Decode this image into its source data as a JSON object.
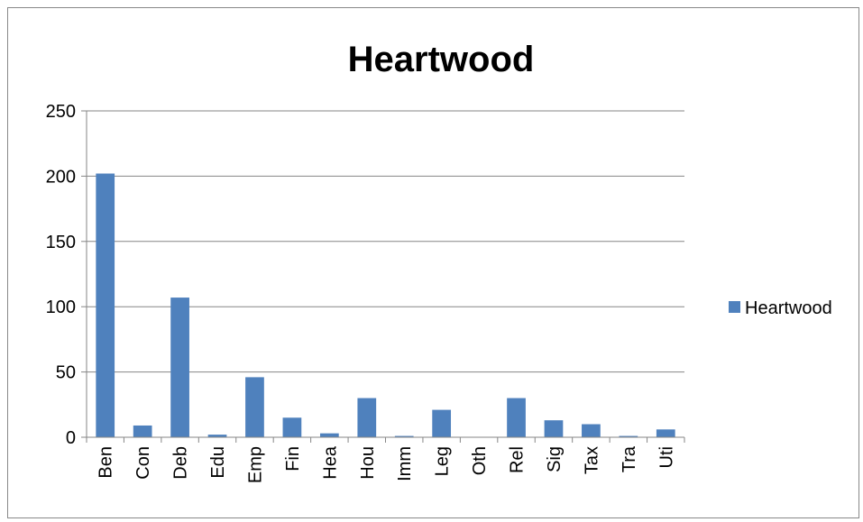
{
  "chart_data": {
    "type": "bar",
    "title": "Heartwood",
    "xlabel": "",
    "ylabel": "",
    "categories": [
      "Ben",
      "Con",
      "Deb",
      "Edu",
      "Emp",
      "Fin",
      "Hea",
      "Hou",
      "Imm",
      "Leg",
      "Oth",
      "Rel",
      "Sig",
      "Tax",
      "Tra",
      "Uti"
    ],
    "series": [
      {
        "name": "Heartwood",
        "color": "#4F81BD",
        "values": [
          202,
          9,
          107,
          2,
          46,
          15,
          3,
          30,
          1,
          21,
          0,
          30,
          13,
          10,
          1,
          6
        ]
      }
    ],
    "ylim": [
      0,
      250
    ],
    "yticks": [
      0,
      50,
      100,
      150,
      200,
      250
    ],
    "grid": true,
    "legend_position": "right"
  }
}
